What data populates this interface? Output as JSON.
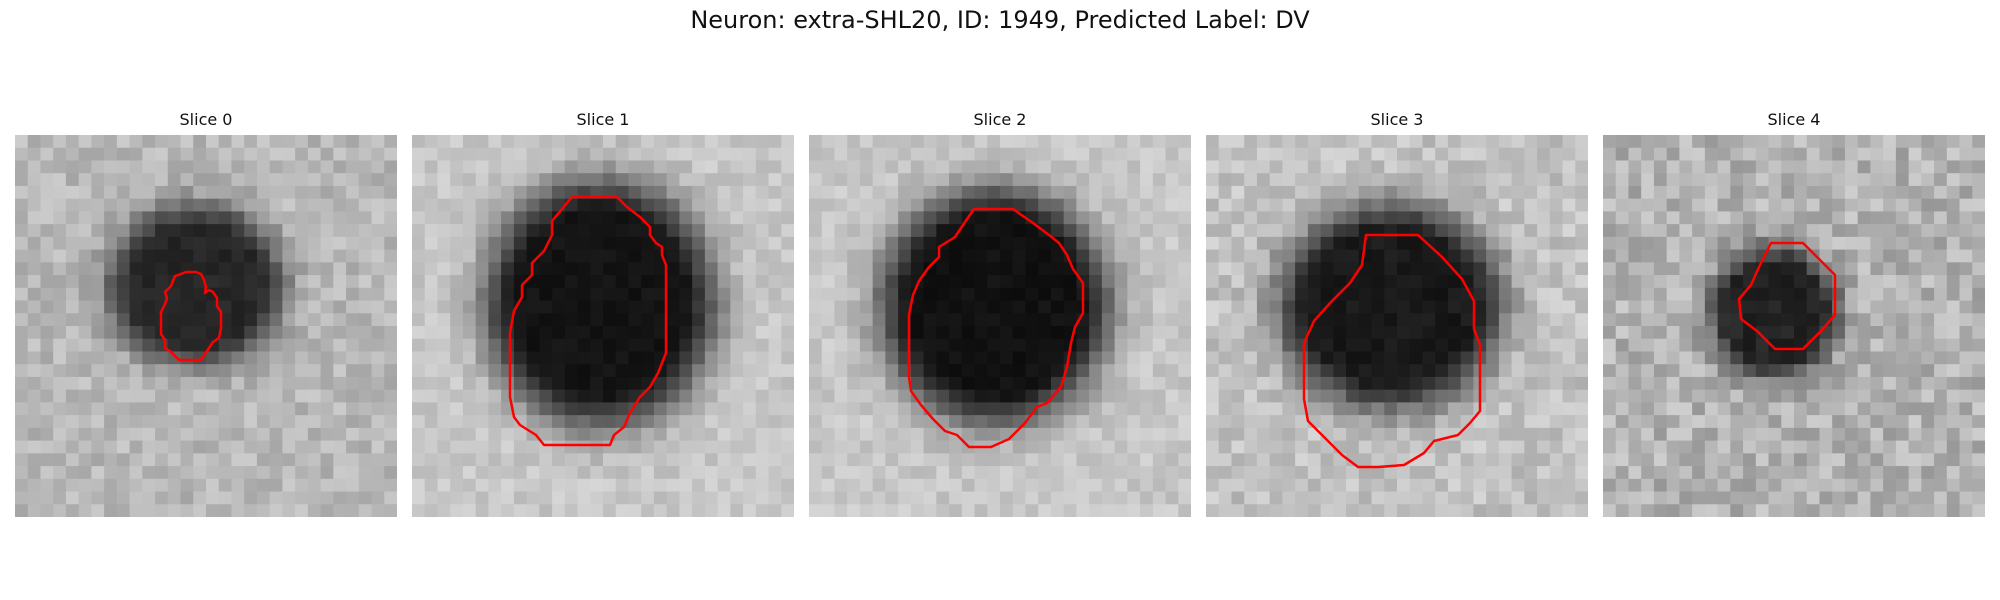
{
  "title": "Neuron: extra-SHL20, ID: 1949, Predicted Label: DV",
  "colors": {
    "contour": "#ff0000",
    "background": "#ffffff"
  },
  "panels": [
    {
      "title": "Slice 0"
    },
    {
      "title": "Slice 1"
    },
    {
      "title": "Slice 2"
    },
    {
      "title": "Slice 3"
    },
    {
      "title": "Slice 4"
    }
  ]
}
